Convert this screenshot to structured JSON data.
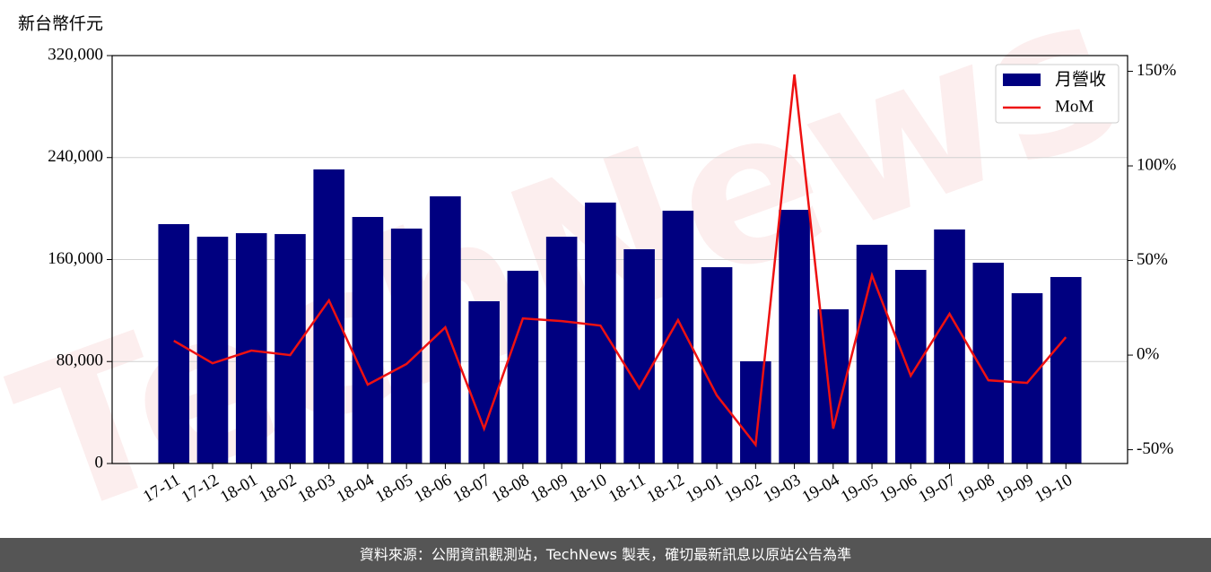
{
  "chart_data": {
    "type": "bar_line",
    "y_axis_label": "新台幣仟元",
    "watermark": "TechNews",
    "categories": [
      "17-11",
      "17-12",
      "18-01",
      "18-02",
      "18-03",
      "18-04",
      "18-05",
      "18-06",
      "18-07",
      "18-08",
      "18-09",
      "18-10",
      "18-11",
      "18-12",
      "19-01",
      "19-02",
      "19-03",
      "19-04",
      "19-05",
      "19-06",
      "19-07",
      "19-08",
      "19-09",
      "19-10"
    ],
    "series": [
      {
        "name": "月營收",
        "type": "bar",
        "color": "#000080",
        "values": [
          187800,
          177900,
          180700,
          180000,
          230700,
          193400,
          184300,
          209600,
          127300,
          151200,
          177900,
          204700,
          168100,
          198300,
          154000,
          80200,
          199000,
          121000,
          171600,
          151900,
          183600,
          157500,
          133600,
          146300
        ]
      },
      {
        "name": "MoM",
        "type": "line",
        "color": "#ee1111",
        "axis": "y2",
        "values": [
          7.6,
          -4.3,
          2.4,
          0,
          28.9,
          -15.6,
          -4.7,
          14.7,
          -38.9,
          19.4,
          18,
          15.6,
          -17.5,
          18.5,
          -21.3,
          -47.4,
          148.3,
          -38.9,
          42.2,
          -10.9,
          21.8,
          -13.3,
          -14.7,
          9.5
        ]
      }
    ],
    "ylim": [
      0,
      320000
    ],
    "yticks": [
      0,
      {
        "value": 80000,
        "label": "80,000"
      },
      {
        "value": 160000,
        "label": "160,000"
      },
      {
        "value": 240000,
        "label": "240,000"
      },
      {
        "value": 320000,
        "label": "320,000"
      }
    ],
    "y2lim": [
      -57.3,
      158.3
    ],
    "y2ticks": [
      {
        "value": -50,
        "label": "-50%"
      },
      {
        "value": 0,
        "label": "0%"
      },
      {
        "value": 50,
        "label": "50%"
      },
      {
        "value": 100,
        "label": "100%"
      },
      {
        "value": 150,
        "label": "150%"
      }
    ],
    "grid": true,
    "legend": "upper right"
  },
  "footer": "資料來源：公開資訊觀測站，TechNews 製表，確切最新訊息以原站公告為準"
}
